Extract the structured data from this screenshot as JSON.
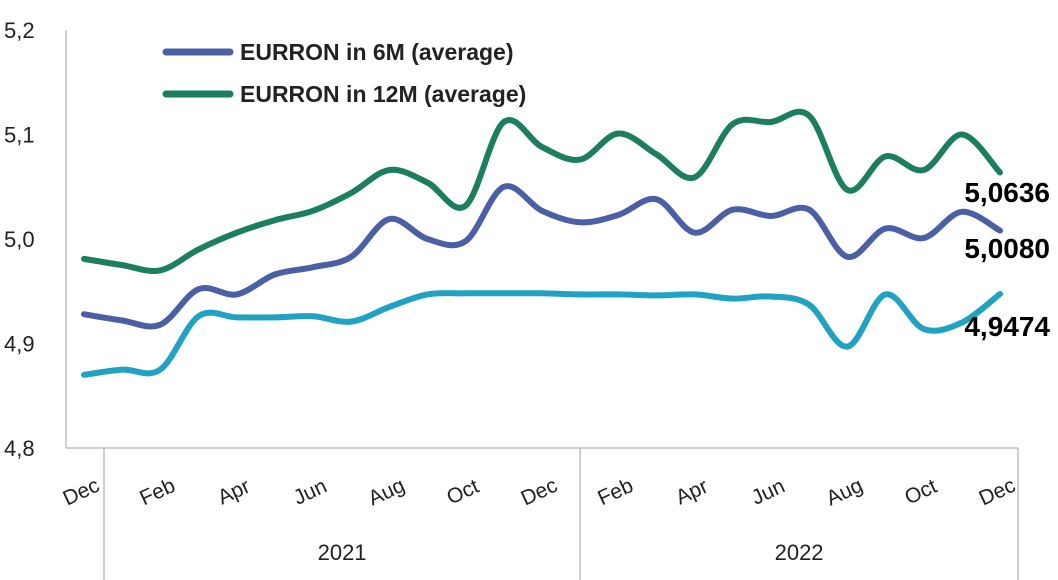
{
  "chart_data": {
    "type": "line",
    "x_labels": [
      "Dec",
      "Feb",
      "Apr",
      "Jun",
      "Aug",
      "Oct",
      "Dec",
      "Feb",
      "Apr",
      "Jun",
      "Aug",
      "Oct",
      "Dec"
    ],
    "year_groups": [
      {
        "label": "2021"
      },
      {
        "label": "2022"
      }
    ],
    "ylim": [
      4.8,
      5.2
    ],
    "y_ticks": [
      "4,8",
      "4,9",
      "5,0",
      "5,1",
      "5,2"
    ],
    "y_tick_values": [
      4.8,
      4.9,
      5.0,
      5.1,
      5.2
    ],
    "series": [
      {
        "name": "EURRON in 12M (average)",
        "color": "#1a7f5a",
        "in_legend": true,
        "end_label": "5,0636",
        "values": [
          4.981,
          4.975,
          4.97,
          4.99,
          5.006,
          5.018,
          5.027,
          5.044,
          5.066,
          5.054,
          5.032,
          5.112,
          5.088,
          5.076,
          5.101,
          5.081,
          5.059,
          5.11,
          5.112,
          5.118,
          5.047,
          5.079,
          5.066,
          5.1,
          5.0636
        ]
      },
      {
        "name": "EURRON in 6M (average)",
        "color": "#4a5fa6",
        "in_legend": true,
        "end_label": "5,0080",
        "values": [
          4.928,
          4.922,
          4.918,
          4.952,
          4.947,
          4.966,
          4.973,
          4.983,
          5.019,
          5.0,
          4.998,
          5.05,
          5.027,
          5.016,
          5.023,
          5.038,
          5.006,
          5.028,
          5.022,
          5.028,
          4.983,
          5.01,
          5.001,
          5.026,
          5.008
        ]
      },
      {
        "name": "",
        "color": "#1fa2c4",
        "in_legend": false,
        "end_label": "4,9474",
        "values": [
          4.87,
          4.875,
          4.875,
          4.926,
          4.925,
          4.925,
          4.926,
          4.921,
          4.935,
          4.947,
          4.948,
          4.948,
          4.948,
          4.947,
          4.947,
          4.946,
          4.947,
          4.943,
          4.945,
          4.937,
          4.897,
          4.947,
          4.914,
          4.92,
          4.9474
        ]
      }
    ]
  }
}
